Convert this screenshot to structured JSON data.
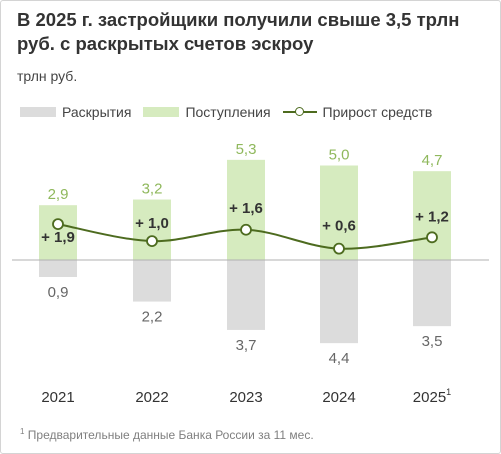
{
  "title": "В 2025 г. застройщики получили свыше 3,5 трлн руб. с раскрытых счетов эскроу",
  "unit_label": "трлн руб.",
  "footnote": {
    "marker": "1",
    "text": "Предварительные данные Банка России за 11 мес."
  },
  "colors": {
    "outflow_bar": "#dcdcdc",
    "inflow_bar": "#d6ebbf",
    "inflow_label": "#8fb85c",
    "growth_line": "#4d6b1f",
    "text_dark": "#333333"
  },
  "chart_data": {
    "type": "bar",
    "categories": [
      "2021",
      "2022",
      "2023",
      "2024",
      "2025"
    ],
    "category_superscripts": [
      "",
      "",
      "",
      "",
      "1"
    ],
    "series": [
      {
        "name": "Раскрытия",
        "type": "bar",
        "values": [
          -0.9,
          -2.2,
          -3.7,
          -4.4,
          -3.5
        ],
        "labels": [
          "0,9",
          "2,2",
          "3,7",
          "4,4",
          "3,5"
        ]
      },
      {
        "name": "Поступления",
        "type": "bar",
        "values": [
          2.9,
          3.2,
          5.3,
          5.0,
          4.7
        ],
        "labels": [
          "2,9",
          "3,2",
          "5,3",
          "5,0",
          "4,7"
        ]
      },
      {
        "name": "Прирост средств",
        "type": "line",
        "values": [
          1.9,
          1.0,
          1.6,
          0.6,
          1.2
        ],
        "labels": [
          "+ 1,9",
          "+ 1,0",
          "+ 1,6",
          "+ 0,6",
          "+ 1,2"
        ]
      }
    ],
    "ylim": [
      -5.0,
      6.0
    ],
    "legend": "top",
    "grid": false
  }
}
